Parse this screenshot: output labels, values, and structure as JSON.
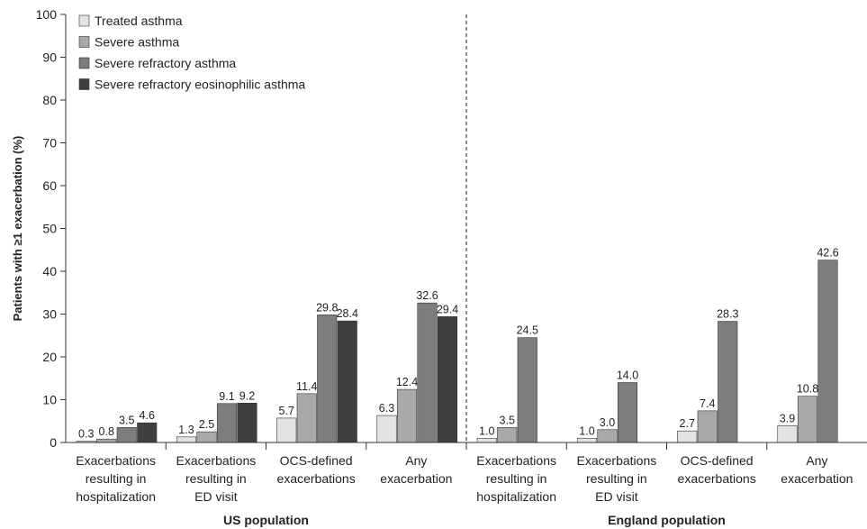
{
  "chart_data": {
    "type": "bar",
    "ylabel": "Patients with ≥1 exacerbation (%)",
    "ylim": [
      0,
      100
    ],
    "yticks": [
      0,
      10,
      20,
      30,
      40,
      50,
      60,
      70,
      80,
      90,
      100
    ],
    "grid": false,
    "legend_position": "top-left",
    "series": [
      {
        "name": "Treated asthma",
        "color": "#e3e3e3"
      },
      {
        "name": "Severe asthma",
        "color": "#a9a9a9"
      },
      {
        "name": "Severe refractory asthma",
        "color": "#7d7d7d"
      },
      {
        "name": "Severe refractory eosinophilic asthma",
        "color": "#3f3f3f"
      }
    ],
    "groups": [
      {
        "name": "US population",
        "categories": [
          {
            "label": [
              "Exacerbations",
              "resulting in",
              "hospitalization"
            ],
            "values": [
              0.3,
              0.8,
              3.5,
              4.6
            ],
            "labels": [
              "0.3",
              "0.8",
              "3.5",
              "4.6"
            ]
          },
          {
            "label": [
              "Exacerbations",
              "resulting in",
              "ED visit"
            ],
            "values": [
              1.3,
              2.5,
              9.1,
              9.2
            ],
            "labels": [
              "1.3",
              "2.5",
              "9.1",
              "9.2"
            ]
          },
          {
            "label": [
              "OCS-defined",
              "exacerbations"
            ],
            "values": [
              5.7,
              11.4,
              29.8,
              28.4
            ],
            "labels": [
              "5.7",
              "11.4",
              "29.8",
              "28.4"
            ]
          },
          {
            "label": [
              "Any",
              "exacerbation"
            ],
            "values": [
              6.3,
              12.4,
              32.6,
              29.4
            ],
            "labels": [
              "6.3",
              "12.4",
              "32.6",
              "29.4"
            ]
          }
        ]
      },
      {
        "name": "England population",
        "categories": [
          {
            "label": [
              "Exacerbations",
              "resulting in",
              "hospitalization"
            ],
            "values": [
              1.0,
              3.5,
              24.5
            ],
            "labels": [
              "1.0",
              "3.5",
              "24.5"
            ]
          },
          {
            "label": [
              "Exacerbations",
              "resulting in",
              "ED visit"
            ],
            "values": [
              1.0,
              3.0,
              14.0
            ],
            "labels": [
              "1.0",
              "3.0",
              "14.0"
            ]
          },
          {
            "label": [
              "OCS-defined",
              "exacerbations"
            ],
            "values": [
              2.7,
              7.4,
              28.3
            ],
            "labels": [
              "2.7",
              "7.4",
              "28.3"
            ]
          },
          {
            "label": [
              "Any",
              "exacerbation"
            ],
            "values": [
              3.9,
              10.8,
              42.6
            ],
            "labels": [
              "3.9",
              "10.8",
              "42.6"
            ]
          }
        ]
      }
    ]
  }
}
